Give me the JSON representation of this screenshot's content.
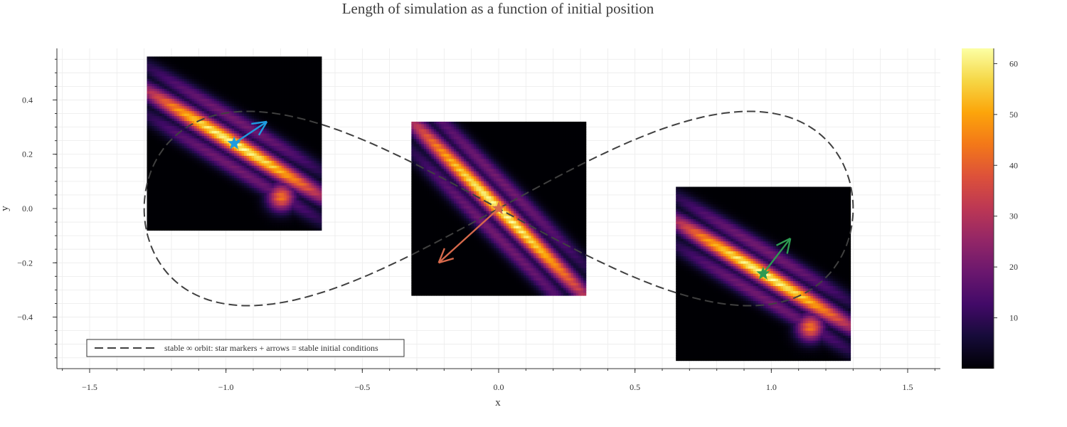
{
  "chart_data": {
    "type": "heatmap",
    "title": "Length of simulation as a function of initial position",
    "xlabel": "x",
    "ylabel": "y",
    "xlim": [
      -1.62,
      1.62
    ],
    "ylim": [
      -0.59,
      0.59
    ],
    "x_ticks": [
      {
        "value": -1.5,
        "label": "−1.5"
      },
      {
        "value": -1.0,
        "label": "−1.0"
      },
      {
        "value": -0.5,
        "label": "−0.5"
      },
      {
        "value": 0.0,
        "label": "0.0"
      },
      {
        "value": 0.5,
        "label": "0.5"
      },
      {
        "value": 1.0,
        "label": "1.0"
      },
      {
        "value": 1.5,
        "label": "1.5"
      }
    ],
    "y_ticks": [
      {
        "value": -0.4,
        "label": "−0.4"
      },
      {
        "value": -0.2,
        "label": "−0.2"
      },
      {
        "value": 0.0,
        "label": "0.0"
      },
      {
        "value": 0.2,
        "label": "0.2"
      },
      {
        "value": 0.4,
        "label": "0.4"
      }
    ],
    "grid": true,
    "colorbar": {
      "colormap": "inferno",
      "range": [
        0,
        63
      ],
      "ticks": [
        {
          "value": 10,
          "label": "10"
        },
        {
          "value": 20,
          "label": "20"
        },
        {
          "value": 30,
          "label": "30"
        },
        {
          "value": 40,
          "label": "40"
        },
        {
          "value": 50,
          "label": "50"
        },
        {
          "value": 60,
          "label": "60"
        }
      ]
    },
    "orbit": {
      "label": "stable ∞ orbit: star markers + arrows = stable initial conditions",
      "style": "dashed",
      "color": "#404040",
      "lobe_half_width": 0.66,
      "max_y": 0.358
    },
    "heatmap_panels": [
      {
        "name": "left",
        "x_range": [
          -1.29,
          -0.65
        ],
        "y_range": [
          -0.08,
          0.56
        ],
        "diagonal_slope": 0.6,
        "extra_blob": "upper-right"
      },
      {
        "name": "center",
        "x_range": [
          -0.32,
          0.32
        ],
        "y_range": [
          -0.32,
          0.32
        ],
        "diagonal_slope": 1.0,
        "extra_blob": "none"
      },
      {
        "name": "right",
        "x_range": [
          0.65,
          1.29
        ],
        "y_range": [
          -0.56,
          0.08
        ],
        "diagonal_slope": 0.6,
        "extra_blob": "upper-right"
      }
    ],
    "stable_points": [
      {
        "name": "left-star",
        "x": -0.97,
        "y": 0.24,
        "dx": 0.12,
        "dy": 0.08,
        "color": "#1f9be0"
      },
      {
        "name": "center-star",
        "x": 0.0,
        "y": 0.0,
        "dx": -0.22,
        "dy": -0.2,
        "color": "#d7694c"
      },
      {
        "name": "right-star",
        "x": 0.97,
        "y": -0.24,
        "dx": 0.1,
        "dy": 0.13,
        "color": "#2e9a52"
      }
    ],
    "legend": {
      "placement": "bottom-left"
    }
  }
}
